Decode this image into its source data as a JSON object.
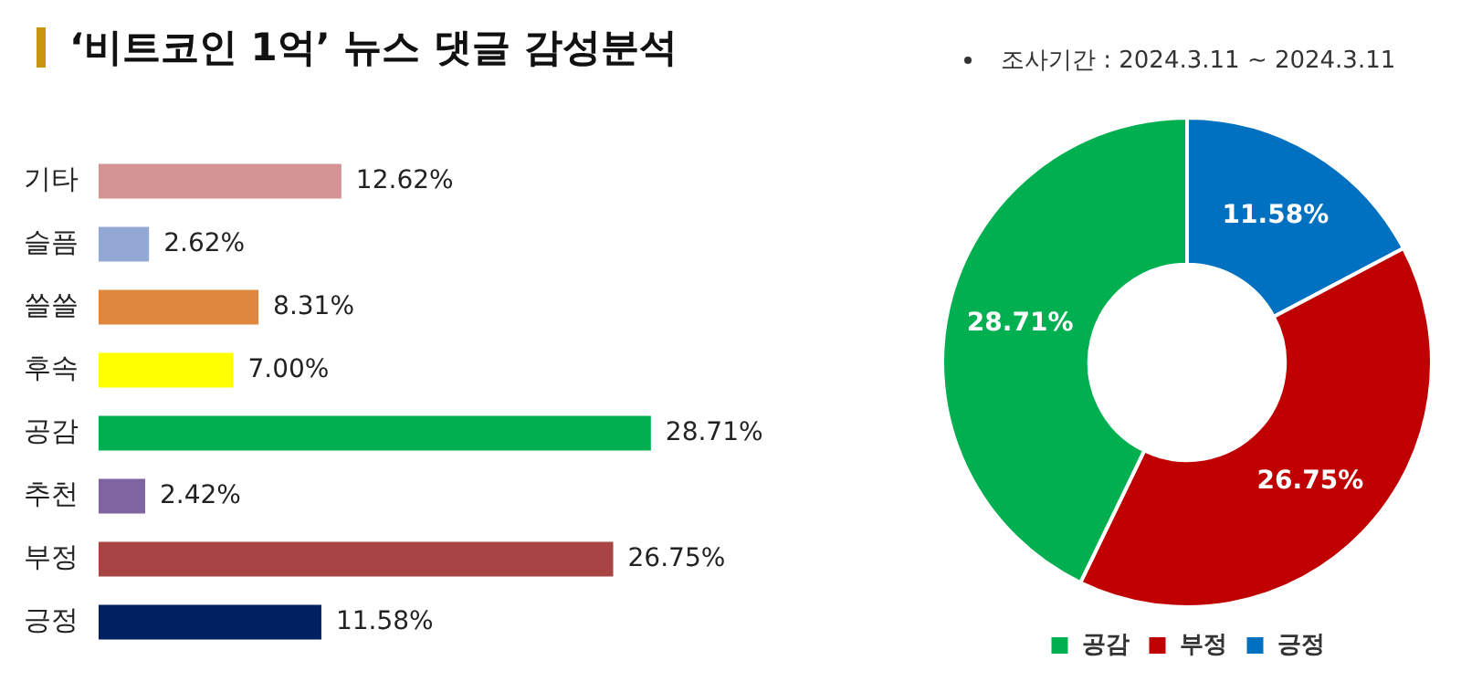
{
  "chart_data": [
    {
      "type": "bar",
      "orientation": "horizontal",
      "title": "‘비트코인 1억’ 뉴스 댓글 감성분석",
      "categories": [
        "기타",
        "슬픔",
        "쓸쓸",
        "후속",
        "공감",
        "추천",
        "부정",
        "긍정"
      ],
      "values": [
        12.62,
        2.62,
        8.31,
        7.0,
        28.71,
        2.42,
        26.75,
        11.58
      ],
      "colors": [
        "#d49494",
        "#94a8d4",
        "#e0873f",
        "#ffff00",
        "#00b050",
        "#8064a2",
        "#a94444",
        "#002060"
      ],
      "value_labels": [
        "12.62%",
        "2.62%",
        "8.31%",
        "7.00%",
        "28.71%",
        "2.42%",
        "26.75%",
        "11.58%"
      ],
      "legend": false
    },
    {
      "type": "donut",
      "subtitle": "조사기간 : 2024.3.11 ~ 2024.3.11",
      "categories": [
        "공감",
        "부정",
        "긍정"
      ],
      "values": [
        28.71,
        26.75,
        11.58
      ],
      "colors": [
        "#00b050",
        "#c00000",
        "#0070c0"
      ],
      "value_labels": [
        "28.71%",
        "26.75%",
        "11.58%"
      ],
      "legend": "bottom"
    }
  ]
}
